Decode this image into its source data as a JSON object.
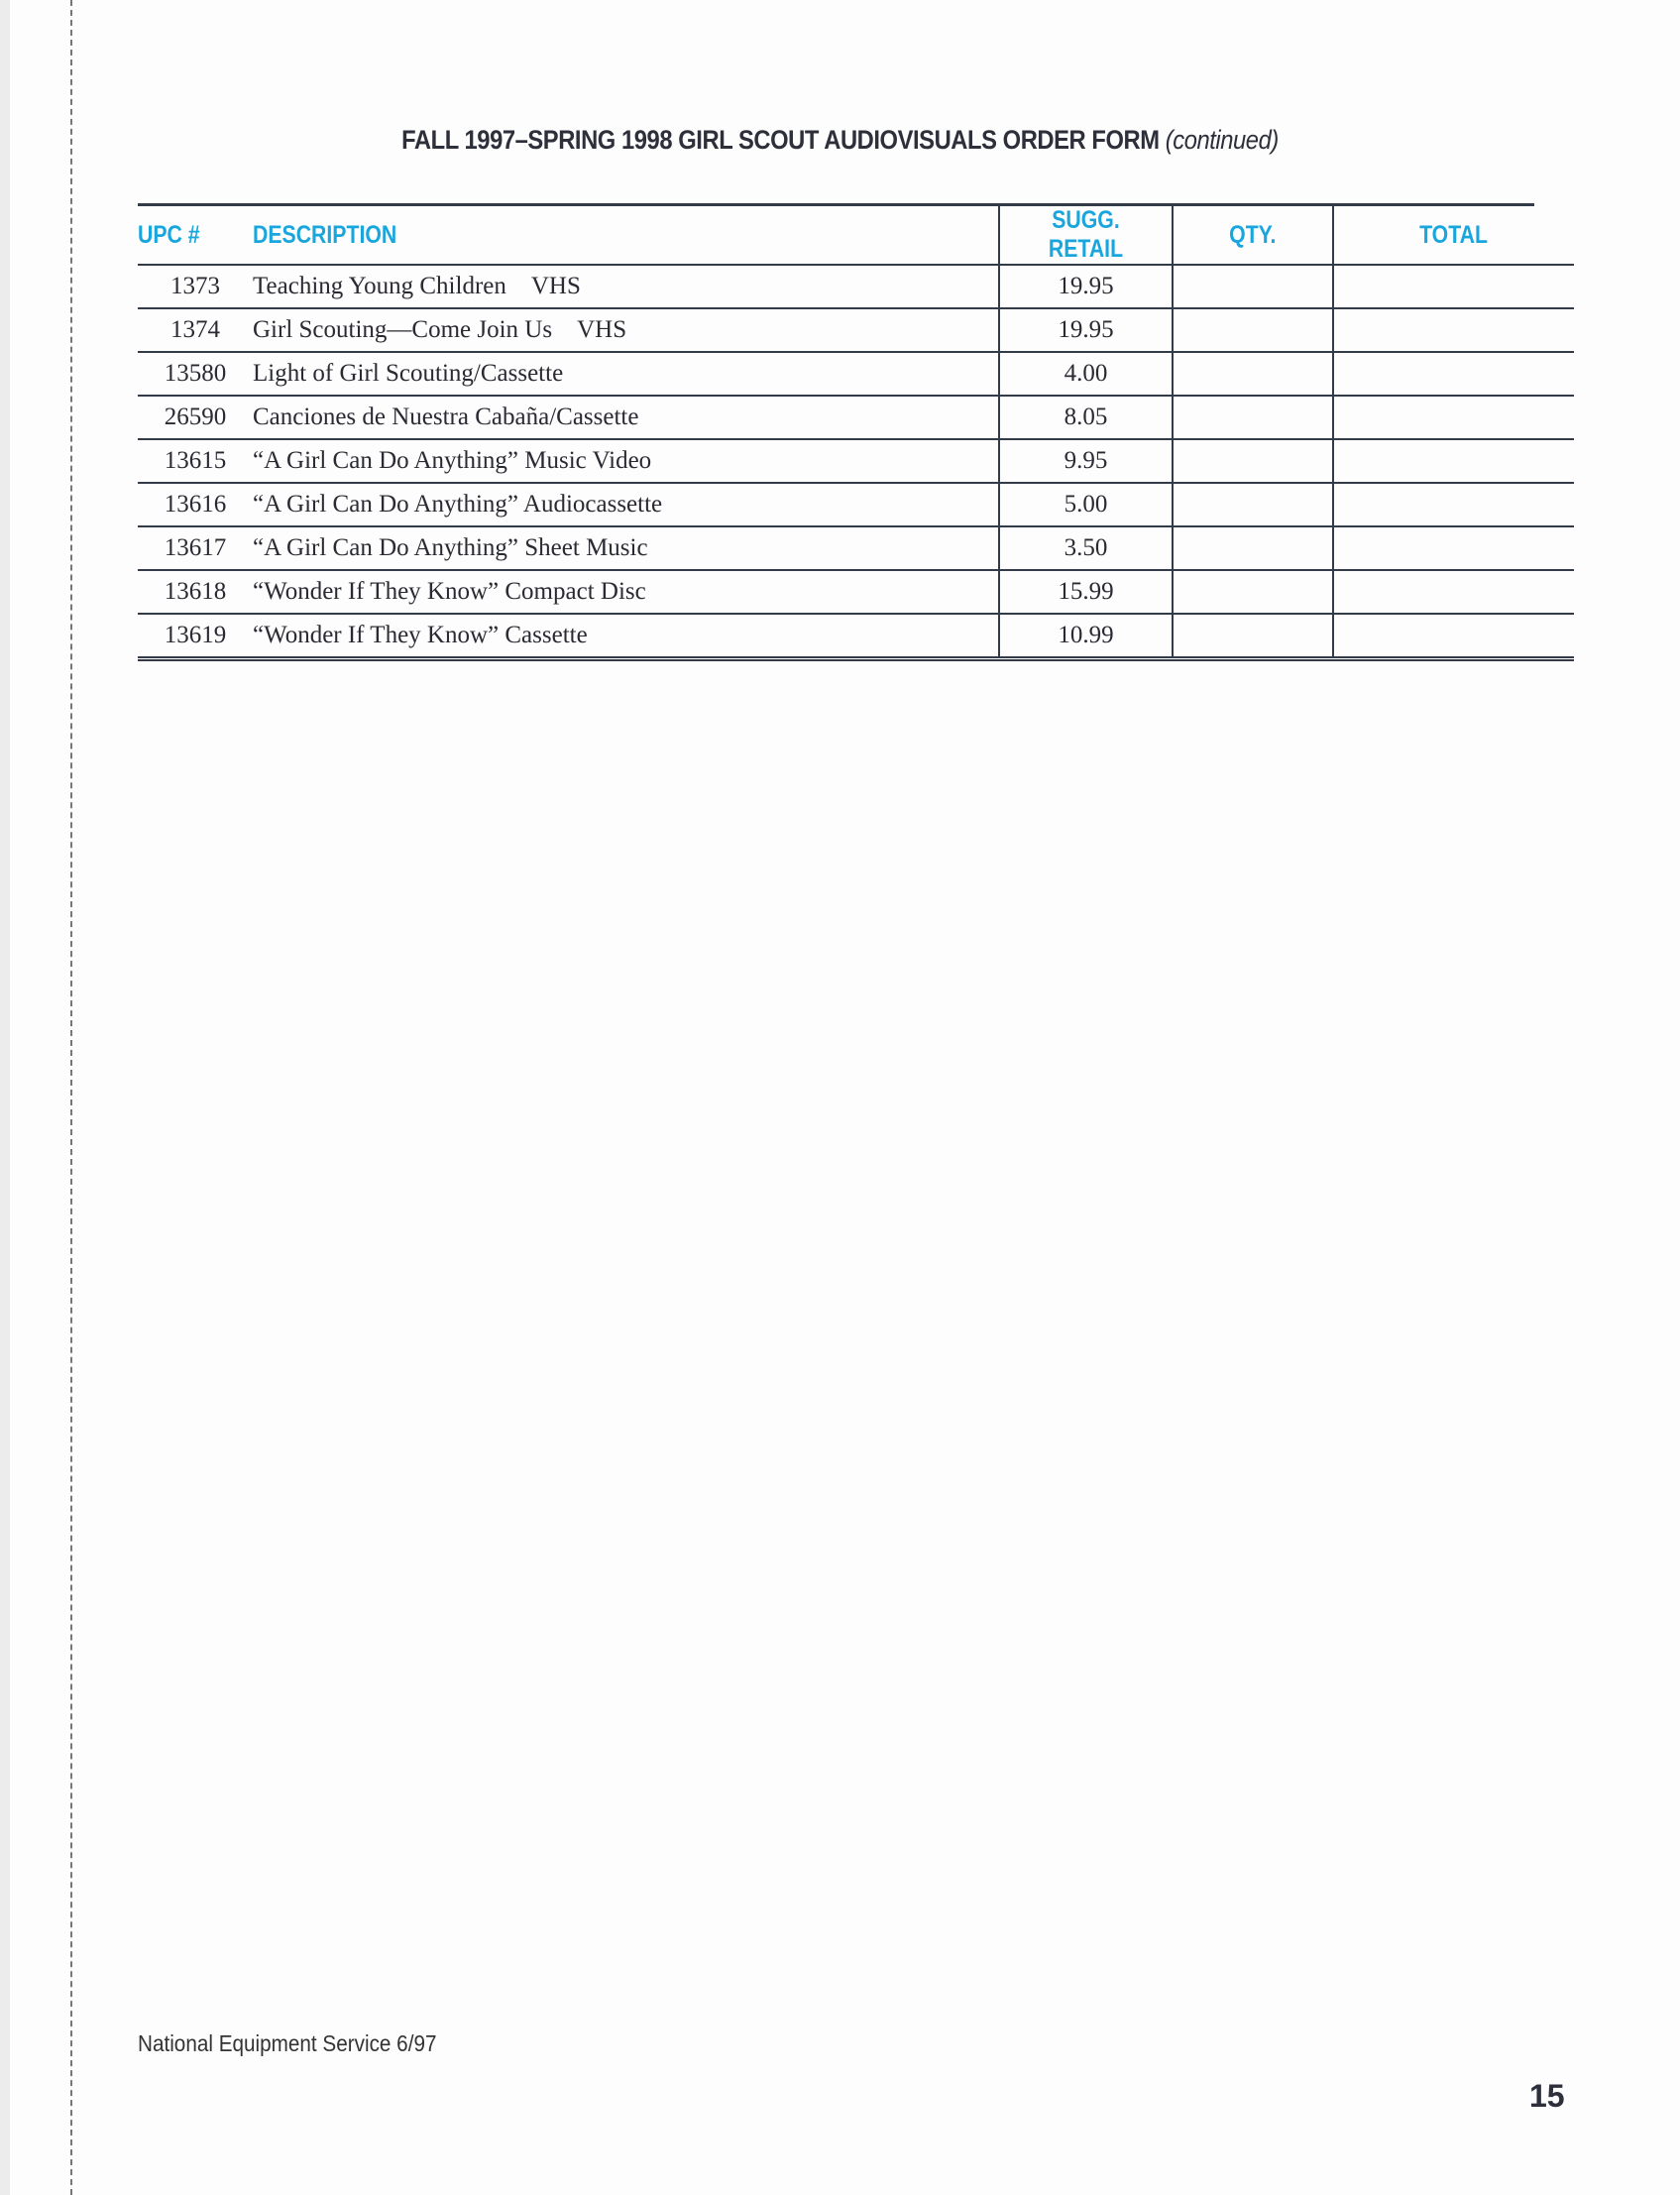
{
  "title": {
    "main": "FALL 1997–SPRING 1998 GIRL SCOUT AUDIOVISUALS ORDER FORM",
    "suffix": "(continued)"
  },
  "columns": [
    "UPC #",
    "DESCRIPTION",
    "SUGG. RETAIL",
    "QTY.",
    "TOTAL"
  ],
  "accent_color": "#19a6dd",
  "rows": [
    {
      "upc": "1373",
      "description": "Teaching Young Children VHS",
      "retail": "19.95",
      "qty": "",
      "total": ""
    },
    {
      "upc": "1374",
      "description": "Girl Scouting—Come Join Us VHS",
      "retail": "19.95",
      "qty": "",
      "total": ""
    },
    {
      "upc": "13580",
      "description": "Light of Girl Scouting/Cassette",
      "retail": "4.00",
      "qty": "",
      "total": ""
    },
    {
      "upc": "26590",
      "description": "Canciones de Nuestra Cabaña/Cassette",
      "retail": "8.05",
      "qty": "",
      "total": ""
    },
    {
      "upc": "13615",
      "description": "“A Girl Can Do Anything” Music Video",
      "retail": "9.95",
      "qty": "",
      "total": ""
    },
    {
      "upc": "13616",
      "description": "“A Girl Can Do Anything” Audiocassette",
      "retail": "5.00",
      "qty": "",
      "total": ""
    },
    {
      "upc": "13617",
      "description": "“A Girl Can Do Anything” Sheet Music",
      "retail": "3.50",
      "qty": "",
      "total": ""
    },
    {
      "upc": "13618",
      "description": "“Wonder If They Know” Compact Disc",
      "retail": "15.99",
      "qty": "",
      "total": ""
    },
    {
      "upc": "13619",
      "description": "“Wonder If They Know” Cassette",
      "retail": "10.99",
      "qty": "",
      "total": ""
    }
  ],
  "footer": "National Equipment Service 6/97",
  "page_number": "15"
}
